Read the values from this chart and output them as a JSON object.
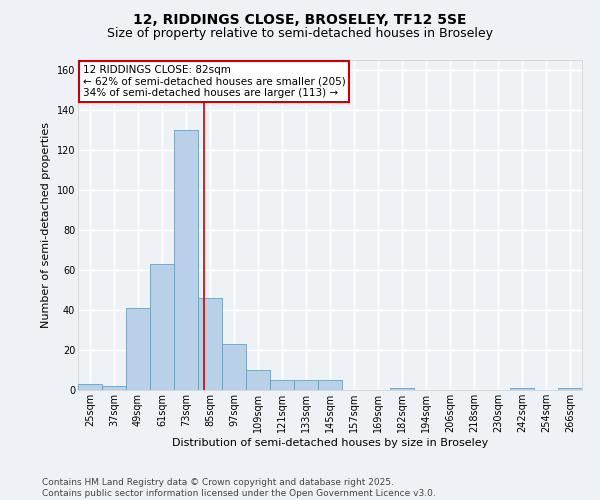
{
  "title_line1": "12, RIDDINGS CLOSE, BROSELEY, TF12 5SE",
  "title_line2": "Size of property relative to semi-detached houses in Broseley",
  "xlabel": "Distribution of semi-detached houses by size in Broseley",
  "ylabel": "Number of semi-detached properties",
  "categories": [
    "25sqm",
    "37sqm",
    "49sqm",
    "61sqm",
    "73sqm",
    "85sqm",
    "97sqm",
    "109sqm",
    "121sqm",
    "133sqm",
    "145sqm",
    "157sqm",
    "169sqm",
    "182sqm",
    "194sqm",
    "206sqm",
    "218sqm",
    "230sqm",
    "242sqm",
    "254sqm",
    "266sqm"
  ],
  "values": [
    3,
    2,
    41,
    63,
    130,
    46,
    23,
    10,
    5,
    5,
    5,
    0,
    0,
    1,
    0,
    0,
    0,
    0,
    1,
    0,
    1
  ],
  "bar_color": "#b8d0e8",
  "bar_edge_color": "#6a9fc0",
  "vline_color": "#cc0000",
  "vline_x": 4.75,
  "annotation_title": "12 RIDDINGS CLOSE: 82sqm",
  "annotation_line1": "← 62% of semi-detached houses are smaller (205)",
  "annotation_line2": "34% of semi-detached houses are larger (113) →",
  "annotation_box_color": "#ffffff",
  "annotation_box_edge": "#cc0000",
  "ylim": [
    0,
    165
  ],
  "yticks": [
    0,
    20,
    40,
    60,
    80,
    100,
    120,
    140,
    160
  ],
  "footer_line1": "Contains HM Land Registry data © Crown copyright and database right 2025.",
  "footer_line2": "Contains public sector information licensed under the Open Government Licence v3.0.",
  "background_color": "#eef2f7",
  "grid_color": "#ffffff",
  "title_fontsize": 10,
  "subtitle_fontsize": 9,
  "axis_label_fontsize": 8,
  "tick_fontsize": 7,
  "annotation_fontsize": 7.5,
  "footer_fontsize": 6.5
}
